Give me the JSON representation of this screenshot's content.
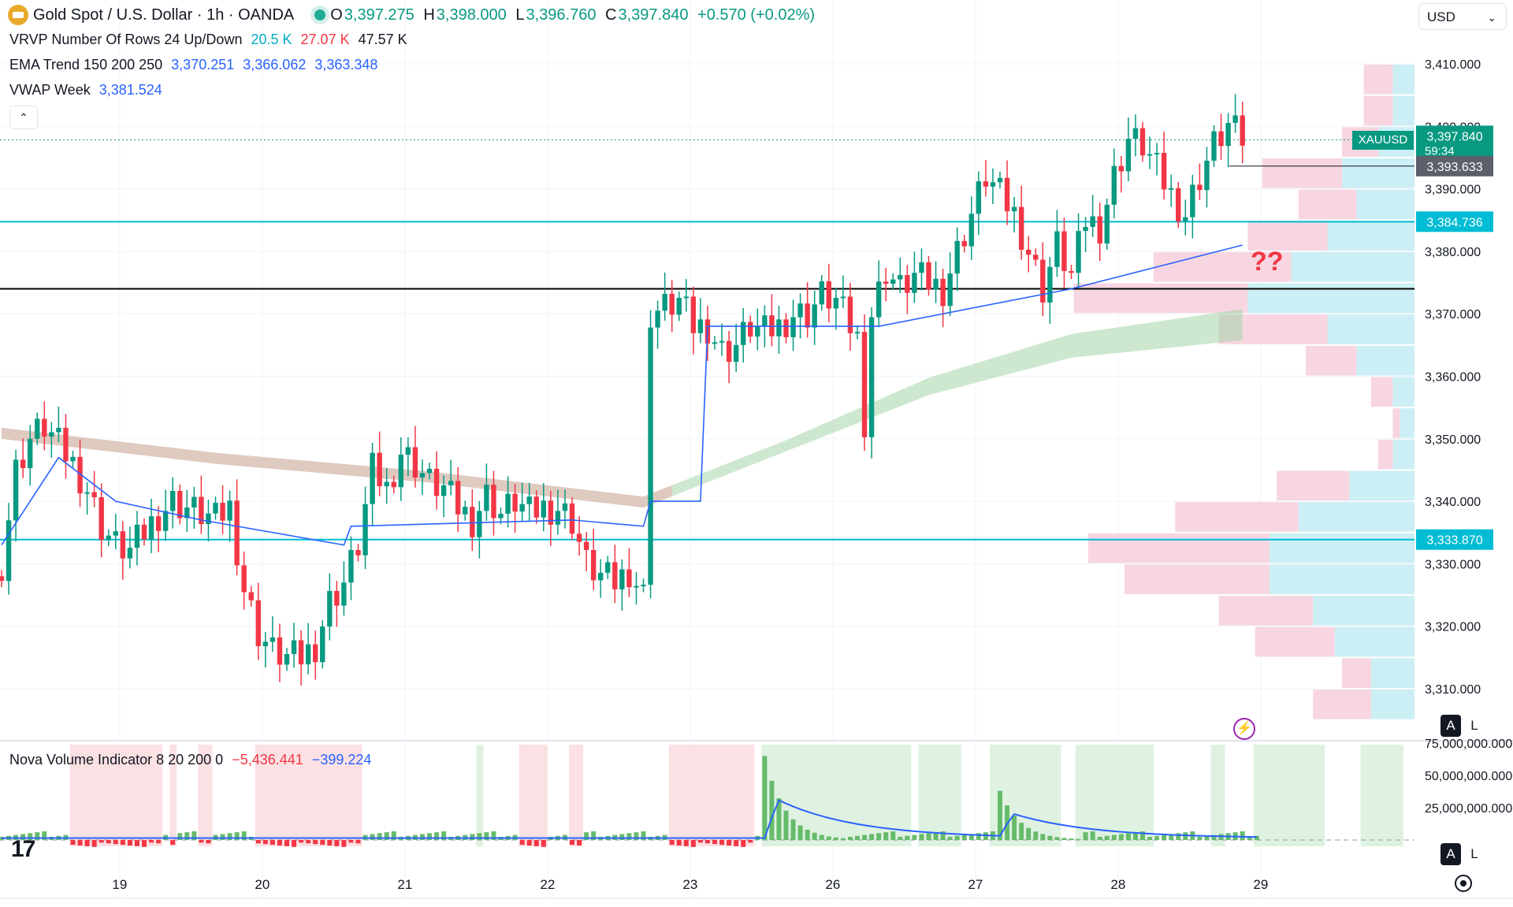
{
  "header": {
    "symbol_title": "Gold Spot / U.S. Dollar · 1h · OANDA",
    "ohlc": {
      "o_label": "O",
      "o": "3,397.275",
      "h_label": "H",
      "h": "3,398.000",
      "l_label": "L",
      "l": "3,396.760",
      "c_label": "C",
      "c": "3,397.840",
      "change": "+0.570 (+0.02%)"
    },
    "currency": "USD"
  },
  "indicators": {
    "vrvp": {
      "label": "VRVP Number Of Rows 24 Up/Down",
      "v1": "20.5 K",
      "v2": "27.07 K",
      "v3": "47.57 K"
    },
    "ema": {
      "label": "EMA Trend 150 200 250",
      "v1": "3,370.251",
      "v2": "3,366.062",
      "v3": "3,363.348"
    },
    "vwap": {
      "label": "VWAP Week",
      "v1": "3,381.524"
    },
    "nova": {
      "label": "Nova Volume Indicator 8 20 200 0",
      "v1": "−5,436.441",
      "v2": "−399.224"
    }
  },
  "price_tags": {
    "symbol": "XAUUSD",
    "last": "3,397.840",
    "countdown": "59:34",
    "marker": "3,393.633",
    "upper_level": "3,384.736",
    "lower_level": "3,333.870"
  },
  "annotation": "??",
  "buttons": {
    "a": "A",
    "l": "L"
  },
  "colors": {
    "up": "#089981",
    "down": "#f23645",
    "level": "#00bcd4",
    "vwap": "#2962ff",
    "vol_up_zone": "#dff2e1",
    "vol_down_zone": "#fbe1e3"
  },
  "chart_data": {
    "type": "candlestick",
    "timeframe": "1h",
    "x_tick_labels": [
      "19",
      "20",
      "21",
      "22",
      "23",
      "26",
      "27",
      "28",
      "29"
    ],
    "y_tick_labels": [
      "3,410.000",
      "3,400.000",
      "3,390.000",
      "3,380.000",
      "3,370.000",
      "3,360.000",
      "3,350.000",
      "3,340.000",
      "3,330.000",
      "3,320.000",
      "3,310.000"
    ],
    "ylim": [
      3307,
      3416
    ],
    "horizontal_levels": [
      {
        "price": 3384.736,
        "color": "#00bcd4"
      },
      {
        "price": 3374.0,
        "color": "#000000"
      },
      {
        "price": 3333.87,
        "color": "#00bcd4"
      }
    ],
    "close_path": [
      [
        0,
        3330
      ],
      [
        2,
        3345
      ],
      [
        4,
        3350
      ],
      [
        6,
        3352
      ],
      [
        8,
        3349
      ],
      [
        10,
        3346
      ],
      [
        12,
        3342
      ],
      [
        14,
        3336
      ],
      [
        16,
        3333
      ],
      [
        18,
        3332
      ],
      [
        20,
        3335
      ],
      [
        22,
        3338
      ],
      [
        24,
        3340
      ],
      [
        26,
        3339
      ],
      [
        28,
        3338
      ],
      [
        30,
        3337
      ],
      [
        32,
        3339
      ],
      [
        34,
        3326
      ],
      [
        36,
        3319
      ],
      [
        38,
        3316
      ],
      [
        40,
        3315
      ],
      [
        42,
        3315
      ],
      [
        44,
        3317
      ],
      [
        46,
        3324
      ],
      [
        48,
        3327
      ],
      [
        50,
        3333
      ],
      [
        52,
        3345
      ],
      [
        54,
        3342
      ],
      [
        56,
        3348
      ],
      [
        58,
        3346
      ],
      [
        60,
        3343
      ],
      [
        62,
        3342
      ],
      [
        64,
        3339
      ],
      [
        66,
        3337
      ],
      [
        68,
        3341
      ],
      [
        70,
        3338
      ],
      [
        72,
        3340
      ],
      [
        74,
        3338
      ],
      [
        76,
        3339
      ],
      [
        78,
        3339
      ],
      [
        80,
        3337
      ],
      [
        82,
        3330
      ],
      [
        84,
        3328
      ],
      [
        86,
        3327
      ],
      [
        88,
        3329
      ],
      [
        90,
        3325
      ],
      [
        91,
        3370
      ],
      [
        93,
        3371
      ],
      [
        95,
        3372
      ],
      [
        97,
        3368
      ],
      [
        99,
        3368
      ],
      [
        101,
        3364
      ],
      [
        103,
        3365
      ],
      [
        105,
        3368
      ],
      [
        107,
        3367
      ],
      [
        109,
        3368
      ],
      [
        111,
        3370
      ],
      [
        113,
        3370
      ],
      [
        115,
        3373
      ],
      [
        117,
        3372
      ],
      [
        119,
        3368
      ],
      [
        120,
        3366
      ],
      [
        121,
        3353
      ],
      [
        122,
        3370
      ],
      [
        124,
        3377
      ],
      [
        126,
        3374
      ],
      [
        128,
        3376
      ],
      [
        130,
        3375
      ],
      [
        132,
        3374
      ],
      [
        134,
        3380
      ],
      [
        136,
        3386
      ],
      [
        138,
        3392
      ],
      [
        140,
        3389
      ],
      [
        142,
        3386
      ],
      [
        144,
        3380
      ],
      [
        146,
        3374
      ],
      [
        148,
        3381
      ],
      [
        150,
        3376
      ],
      [
        152,
        3385
      ],
      [
        154,
        3384
      ],
      [
        156,
        3392
      ],
      [
        158,
        3398
      ],
      [
        160,
        3397
      ],
      [
        162,
        3393
      ],
      [
        164,
        3389
      ],
      [
        166,
        3386
      ],
      [
        168,
        3392
      ],
      [
        170,
        3397
      ],
      [
        172,
        3400
      ],
      [
        174,
        3398
      ]
    ],
    "ema_ribbon": {
      "x": [
        0,
        30,
        60,
        90,
        110,
        130,
        150,
        174
      ],
      "y": [
        3351,
        3347,
        3344,
        3340,
        3349,
        3359,
        3366,
        3370
      ]
    },
    "vwap_week": {
      "x": [
        0,
        8,
        16,
        28,
        48,
        49,
        80,
        90,
        91,
        98,
        99,
        122,
        123,
        150,
        174
      ],
      "y": [
        3333,
        3347,
        3340,
        3337,
        3333,
        3336,
        3337,
        3336,
        3340,
        3340,
        3368,
        3368,
        3368,
        3374,
        3381
      ]
    },
    "volume_profile": {
      "rows": [
        {
          "price_low": 3405,
          "price_high": 3410,
          "up": 3,
          "down": 4
        },
        {
          "price_low": 3400,
          "price_high": 3405,
          "up": 3,
          "down": 4
        },
        {
          "price_low": 3395,
          "price_high": 3400,
          "up": 5,
          "down": 5
        },
        {
          "price_low": 3390,
          "price_high": 3395,
          "up": 10,
          "down": 11
        },
        {
          "price_low": 3385,
          "price_high": 3390,
          "up": 8,
          "down": 8
        },
        {
          "price_low": 3380,
          "price_high": 3385,
          "up": 12,
          "down": 11
        },
        {
          "price_low": 3375,
          "price_high": 3380,
          "up": 17,
          "down": 19
        },
        {
          "price_low": 3370,
          "price_high": 3375,
          "up": 23,
          "down": 24
        },
        {
          "price_low": 3365,
          "price_high": 3370,
          "up": 12,
          "down": 15
        },
        {
          "price_low": 3360,
          "price_high": 3365,
          "up": 8,
          "down": 7
        },
        {
          "price_low": 3355,
          "price_high": 3360,
          "up": 3,
          "down": 3
        },
        {
          "price_low": 3350,
          "price_high": 3355,
          "up": 2,
          "down": 1
        },
        {
          "price_low": 3345,
          "price_high": 3350,
          "up": 3,
          "down": 2
        },
        {
          "price_low": 3340,
          "price_high": 3345,
          "up": 9,
          "down": 10
        },
        {
          "price_low": 3335,
          "price_high": 3340,
          "up": 16,
          "down": 17
        },
        {
          "price_low": 3330,
          "price_high": 3335,
          "up": 20,
          "down": 25
        },
        {
          "price_low": 3325,
          "price_high": 3330,
          "up": 20,
          "down": 20
        },
        {
          "price_low": 3320,
          "price_high": 3325,
          "up": 14,
          "down": 13
        },
        {
          "price_low": 3315,
          "price_high": 3320,
          "up": 11,
          "down": 11
        },
        {
          "price_low": 3310,
          "price_high": 3315,
          "up": 6,
          "down": 4
        },
        {
          "price_low": 3305,
          "price_high": 3310,
          "up": 6,
          "down": 8
        }
      ]
    },
    "volume_panel": {
      "y_tick_labels": [
        "75,000,000.000",
        "50,000,000.000",
        "25,000,000.000"
      ],
      "ylim": [
        -15000000,
        75000000
      ],
      "zones": [
        {
          "from": 10,
          "to": 23,
          "kind": "down"
        },
        {
          "from": 24,
          "to": 25,
          "kind": "down"
        },
        {
          "from": 28,
          "to": 30,
          "kind": "down"
        },
        {
          "from": 36,
          "to": 51,
          "kind": "down"
        },
        {
          "from": 67,
          "to": 68,
          "kind": "up"
        },
        {
          "from": 73,
          "to": 77,
          "kind": "down"
        },
        {
          "from": 80,
          "to": 82,
          "kind": "down"
        },
        {
          "from": 94,
          "to": 106,
          "kind": "down"
        },
        {
          "from": 107,
          "to": 128,
          "kind": "up"
        },
        {
          "from": 129,
          "to": 135,
          "kind": "up"
        },
        {
          "from": 139,
          "to": 149,
          "kind": "up"
        },
        {
          "from": 151,
          "to": 162,
          "kind": "up"
        },
        {
          "from": 170,
          "to": 172,
          "kind": "up"
        },
        {
          "from": 176,
          "to": 186,
          "kind": "up"
        },
        {
          "from": 191,
          "to": 197,
          "kind": "up"
        }
      ],
      "spikes": [
        {
          "bar": 107,
          "value": 65000000
        },
        {
          "bar": 140,
          "value": 38000000
        }
      ]
    }
  }
}
